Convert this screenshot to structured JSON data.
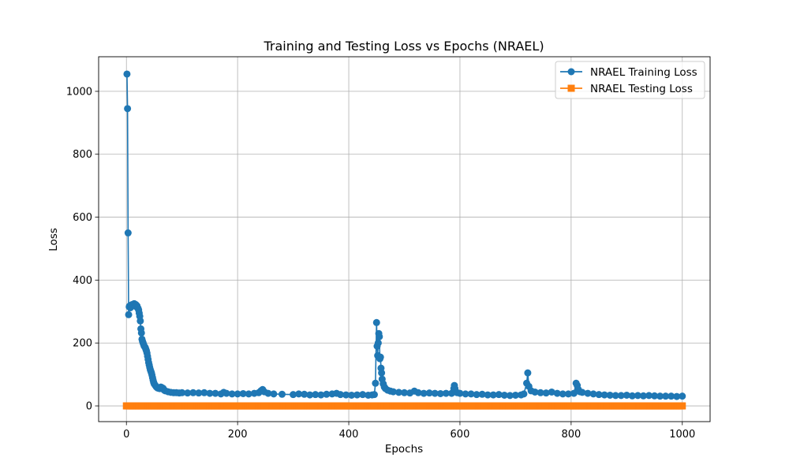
{
  "chart_data": {
    "type": "line",
    "title": "Training and Testing Loss vs Epochs (NRAEL)",
    "xlabel": "Epochs",
    "ylabel": "Loss",
    "xlim": [
      -50,
      1050
    ],
    "ylim": [
      -50,
      1110
    ],
    "xticks": [
      0,
      200,
      400,
      600,
      800,
      1000
    ],
    "yticks": [
      0,
      200,
      400,
      600,
      800,
      1000
    ],
    "grid": true,
    "legend_position": "top-right",
    "series": [
      {
        "name": "NRAEL Training Loss",
        "color": "#1f77b4",
        "marker": "circle",
        "points": [
          [
            1,
            1055
          ],
          [
            2,
            945
          ],
          [
            3,
            550
          ],
          [
            4,
            290
          ],
          [
            5,
            315
          ],
          [
            6,
            318
          ],
          [
            7,
            312
          ],
          [
            8,
            320
          ],
          [
            9,
            316
          ],
          [
            10,
            322
          ],
          [
            11,
            318
          ],
          [
            12,
            322
          ],
          [
            13,
            320
          ],
          [
            14,
            325
          ],
          [
            15,
            322
          ],
          [
            16,
            318
          ],
          [
            17,
            322
          ],
          [
            18,
            315
          ],
          [
            19,
            318
          ],
          [
            20,
            312
          ],
          [
            21,
            310
          ],
          [
            22,
            305
          ],
          [
            23,
            295
          ],
          [
            24,
            285
          ],
          [
            25,
            270
          ],
          [
            26,
            245
          ],
          [
            27,
            232
          ],
          [
            28,
            212
          ],
          [
            29,
            205
          ],
          [
            30,
            200
          ],
          [
            31,
            195
          ],
          [
            32,
            190
          ],
          [
            33,
            188
          ],
          [
            34,
            185
          ],
          [
            35,
            180
          ],
          [
            36,
            175
          ],
          [
            37,
            168
          ],
          [
            38,
            158
          ],
          [
            39,
            148
          ],
          [
            40,
            138
          ],
          [
            41,
            130
          ],
          [
            42,
            122
          ],
          [
            43,
            115
          ],
          [
            44,
            110
          ],
          [
            45,
            105
          ],
          [
            46,
            98
          ],
          [
            47,
            90
          ],
          [
            48,
            82
          ],
          [
            49,
            75
          ],
          [
            50,
            70
          ],
          [
            52,
            65
          ],
          [
            54,
            60
          ],
          [
            56,
            57
          ],
          [
            58,
            56
          ],
          [
            60,
            55
          ],
          [
            62,
            60
          ],
          [
            64,
            58
          ],
          [
            66,
            56
          ],
          [
            68,
            50
          ],
          [
            70,
            48
          ],
          [
            75,
            45
          ],
          [
            80,
            43
          ],
          [
            85,
            42
          ],
          [
            90,
            42
          ],
          [
            95,
            41
          ],
          [
            100,
            42
          ],
          [
            110,
            41
          ],
          [
            120,
            42
          ],
          [
            130,
            41
          ],
          [
            140,
            42
          ],
          [
            150,
            40
          ],
          [
            160,
            40
          ],
          [
            170,
            38
          ],
          [
            175,
            43
          ],
          [
            180,
            40
          ],
          [
            190,
            38
          ],
          [
            200,
            38
          ],
          [
            210,
            39
          ],
          [
            220,
            38
          ],
          [
            230,
            40
          ],
          [
            238,
            42
          ],
          [
            242,
            48
          ],
          [
            245,
            52
          ],
          [
            248,
            45
          ],
          [
            255,
            40
          ],
          [
            265,
            38
          ],
          [
            280,
            37
          ],
          [
            300,
            36
          ],
          [
            310,
            38
          ],
          [
            320,
            37
          ],
          [
            330,
            35
          ],
          [
            340,
            36
          ],
          [
            350,
            35
          ],
          [
            360,
            37
          ],
          [
            370,
            38
          ],
          [
            378,
            40
          ],
          [
            385,
            36
          ],
          [
            395,
            35
          ],
          [
            405,
            34
          ],
          [
            415,
            35
          ],
          [
            425,
            36
          ],
          [
            435,
            34
          ],
          [
            442,
            35
          ],
          [
            446,
            36
          ],
          [
            448,
            72
          ],
          [
            450,
            265
          ],
          [
            451,
            190
          ],
          [
            452,
            160
          ],
          [
            453,
            200
          ],
          [
            454,
            230
          ],
          [
            455,
            220
          ],
          [
            456,
            150
          ],
          [
            457,
            155
          ],
          [
            458,
            120
          ],
          [
            459,
            105
          ],
          [
            460,
            85
          ],
          [
            462,
            70
          ],
          [
            464,
            60
          ],
          [
            466,
            55
          ],
          [
            470,
            50
          ],
          [
            475,
            47
          ],
          [
            480,
            45
          ],
          [
            490,
            43
          ],
          [
            500,
            42
          ],
          [
            510,
            41
          ],
          [
            518,
            47
          ],
          [
            525,
            42
          ],
          [
            535,
            40
          ],
          [
            545,
            41
          ],
          [
            555,
            40
          ],
          [
            565,
            39
          ],
          [
            575,
            40
          ],
          [
            585,
            40
          ],
          [
            589,
            55
          ],
          [
            590,
            65
          ],
          [
            591,
            55
          ],
          [
            595,
            42
          ],
          [
            600,
            40
          ],
          [
            610,
            38
          ],
          [
            620,
            38
          ],
          [
            630,
            36
          ],
          [
            640,
            37
          ],
          [
            650,
            35
          ],
          [
            660,
            35
          ],
          [
            670,
            36
          ],
          [
            680,
            34
          ],
          [
            690,
            33
          ],
          [
            700,
            34
          ],
          [
            710,
            35
          ],
          [
            715,
            38
          ],
          [
            720,
            72
          ],
          [
            722,
            105
          ],
          [
            724,
            62
          ],
          [
            728,
            48
          ],
          [
            735,
            44
          ],
          [
            745,
            42
          ],
          [
            755,
            41
          ],
          [
            765,
            44
          ],
          [
            775,
            40
          ],
          [
            785,
            38
          ],
          [
            795,
            38
          ],
          [
            805,
            40
          ],
          [
            809,
            72
          ],
          [
            811,
            65
          ],
          [
            813,
            52
          ],
          [
            816,
            45
          ],
          [
            820,
            43
          ],
          [
            830,
            40
          ],
          [
            840,
            38
          ],
          [
            850,
            36
          ],
          [
            860,
            35
          ],
          [
            870,
            34
          ],
          [
            880,
            33
          ],
          [
            890,
            33
          ],
          [
            900,
            34
          ],
          [
            910,
            32
          ],
          [
            920,
            33
          ],
          [
            930,
            32
          ],
          [
            940,
            33
          ],
          [
            950,
            32
          ],
          [
            960,
            31
          ],
          [
            970,
            31
          ],
          [
            980,
            31
          ],
          [
            990,
            30
          ],
          [
            1000,
            31
          ]
        ]
      },
      {
        "name": "NRAEL Testing Loss",
        "color": "#ff7f0e",
        "marker": "square",
        "constant_value": 0,
        "x_range": [
          0,
          1000
        ]
      }
    ]
  }
}
